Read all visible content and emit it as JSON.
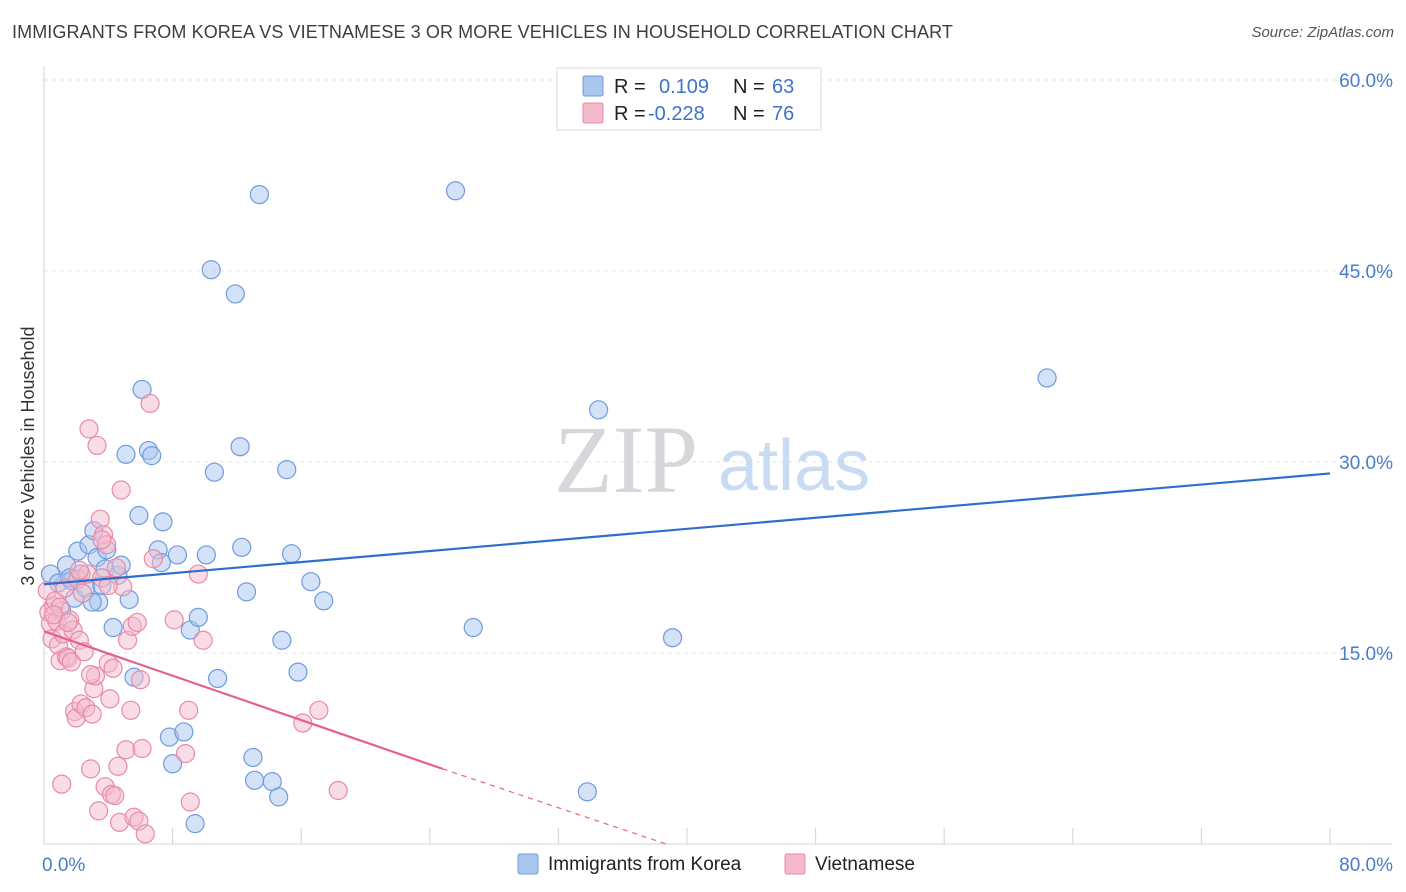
{
  "title": "IMMIGRANTS FROM KOREA VS VIETNAMESE 3 OR MORE VEHICLES IN HOUSEHOLD CORRELATION CHART",
  "source": "Source: ZipAtlas.com",
  "watermark": {
    "zip": "ZIP",
    "atlas": "atlas"
  },
  "colors": {
    "korea_fill": "#a9c6ef",
    "korea_stroke": "#6f9bdc",
    "korea_line": "#2e6fcc",
    "viet_fill": "#f4b9cb",
    "viet_stroke": "#e88aa8",
    "viet_line": "#e5608d",
    "grid": "#e1e4e8",
    "axis_text": "#4a7ccc"
  },
  "legend": {
    "rows": [
      {
        "r_label": "R =",
        "r_value": "0.109",
        "n_label": "N =",
        "n_value": "63"
      },
      {
        "r_label": "R =",
        "r_value": "-0.228",
        "n_label": "N =",
        "n_value": "76"
      }
    ]
  },
  "chart_data": {
    "type": "scatter",
    "xlabel": "",
    "ylabel": "3 or more Vehicles in Household",
    "xlim": [
      0,
      80
    ],
    "ylim": [
      0,
      60
    ],
    "x_tick_labels": {
      "min": "0.0%",
      "max": "80.0%"
    },
    "y_ticks": [
      {
        "value": 15,
        "label": "15.0%"
      },
      {
        "value": 30,
        "label": "30.0%"
      },
      {
        "value": 45,
        "label": "45.0%"
      },
      {
        "value": 60,
        "label": "60.0%"
      }
    ],
    "series": [
      {
        "name": "Immigrants from Korea",
        "R": 0.109,
        "N": 63,
        "trend": {
          "x0": 0,
          "y0": 20.4,
          "x1": 80,
          "y1": 29.1
        },
        "points": [
          [
            0.4,
            21.2
          ],
          [
            0.9,
            20.5
          ],
          [
            1.1,
            18.3
          ],
          [
            1.4,
            21.9
          ],
          [
            1.7,
            20.7
          ],
          [
            1.9,
            19.3
          ],
          [
            2.1,
            23.0
          ],
          [
            2.3,
            21.2
          ],
          [
            2.6,
            20.1
          ],
          [
            2.8,
            23.5
          ],
          [
            3.1,
            24.6
          ],
          [
            3.3,
            22.5
          ],
          [
            3.4,
            19.0
          ],
          [
            3.6,
            20.3
          ],
          [
            3.8,
            21.6
          ],
          [
            3.9,
            23.1
          ],
          [
            4.3,
            17.0
          ],
          [
            4.6,
            21.1
          ],
          [
            4.8,
            21.9
          ],
          [
            5.1,
            30.6
          ],
          [
            5.3,
            19.2
          ],
          [
            5.6,
            13.1
          ],
          [
            5.9,
            25.8
          ],
          [
            6.1,
            35.7
          ],
          [
            6.5,
            30.9
          ],
          [
            6.7,
            30.5
          ],
          [
            7.1,
            23.1
          ],
          [
            7.3,
            22.1
          ],
          [
            7.4,
            25.3
          ],
          [
            7.8,
            8.4
          ],
          [
            8.0,
            6.3
          ],
          [
            8.3,
            22.7
          ],
          [
            8.7,
            8.8
          ],
          [
            9.1,
            16.8
          ],
          [
            9.4,
            1.6
          ],
          [
            9.6,
            17.8
          ],
          [
            10.1,
            22.7
          ],
          [
            10.4,
            45.1
          ],
          [
            10.6,
            29.2
          ],
          [
            10.8,
            13.0
          ],
          [
            11.9,
            43.2
          ],
          [
            12.2,
            31.2
          ],
          [
            12.3,
            23.3
          ],
          [
            12.6,
            19.8
          ],
          [
            13.0,
            6.8
          ],
          [
            13.1,
            5.0
          ],
          [
            13.4,
            51.0
          ],
          [
            14.2,
            4.9
          ],
          [
            14.6,
            3.7
          ],
          [
            14.8,
            16.0
          ],
          [
            15.1,
            29.4
          ],
          [
            15.4,
            22.8
          ],
          [
            15.8,
            13.5
          ],
          [
            16.6,
            20.6
          ],
          [
            17.4,
            19.1
          ],
          [
            25.6,
            51.3
          ],
          [
            26.7,
            17.0
          ],
          [
            33.8,
            4.1
          ],
          [
            34.5,
            34.1
          ],
          [
            39.1,
            16.2
          ],
          [
            62.4,
            36.6
          ],
          [
            3.0,
            19.0
          ],
          [
            1.6,
            20.9
          ]
        ]
      },
      {
        "name": "Vietnamese",
        "R": -0.228,
        "N": 76,
        "trend": {
          "x0": 0,
          "y0": 16.7,
          "x1": 24.8,
          "y1": 5.9
        },
        "trend_dashed": {
          "x0": 24.8,
          "y0": 5.9,
          "x1": 38.7,
          "y1": 0.0
        },
        "points": [
          [
            0.2,
            19.9
          ],
          [
            0.3,
            18.2
          ],
          [
            0.4,
            17.3
          ],
          [
            0.5,
            16.1
          ],
          [
            0.6,
            18.7
          ],
          [
            0.7,
            19.1
          ],
          [
            0.8,
            17.5
          ],
          [
            0.9,
            15.6
          ],
          [
            1.0,
            14.4
          ],
          [
            1.1,
            4.7
          ],
          [
            1.2,
            16.5
          ],
          [
            1.3,
            20.1
          ],
          [
            1.4,
            14.7
          ],
          [
            1.5,
            14.6
          ],
          [
            1.6,
            17.6
          ],
          [
            1.7,
            14.3
          ],
          [
            1.8,
            16.8
          ],
          [
            1.9,
            10.4
          ],
          [
            2.0,
            9.9
          ],
          [
            2.1,
            20.8
          ],
          [
            2.2,
            16.0
          ],
          [
            2.3,
            11.0
          ],
          [
            2.4,
            19.7
          ],
          [
            2.5,
            15.1
          ],
          [
            2.6,
            10.7
          ],
          [
            2.7,
            21.2
          ],
          [
            2.8,
            32.6
          ],
          [
            2.9,
            5.9
          ],
          [
            3.0,
            10.2
          ],
          [
            3.1,
            12.2
          ],
          [
            3.2,
            13.2
          ],
          [
            3.3,
            31.3
          ],
          [
            3.4,
            2.6
          ],
          [
            3.5,
            25.5
          ],
          [
            3.6,
            20.9
          ],
          [
            3.7,
            24.3
          ],
          [
            3.8,
            4.5
          ],
          [
            3.9,
            23.5
          ],
          [
            4.0,
            14.2
          ],
          [
            4.1,
            11.4
          ],
          [
            4.2,
            3.9
          ],
          [
            4.3,
            13.8
          ],
          [
            4.4,
            3.8
          ],
          [
            4.5,
            21.7
          ],
          [
            4.6,
            6.1
          ],
          [
            4.7,
            1.7
          ],
          [
            4.8,
            27.8
          ],
          [
            4.9,
            20.2
          ],
          [
            5.1,
            7.4
          ],
          [
            5.2,
            16.0
          ],
          [
            5.4,
            10.5
          ],
          [
            5.5,
            17.1
          ],
          [
            5.6,
            2.1
          ],
          [
            5.8,
            17.4
          ],
          [
            5.9,
            1.8
          ],
          [
            6.0,
            12.9
          ],
          [
            6.1,
            7.5
          ],
          [
            6.3,
            0.8
          ],
          [
            6.6,
            34.6
          ],
          [
            6.8,
            22.4
          ],
          [
            8.1,
            17.6
          ],
          [
            8.8,
            7.1
          ],
          [
            9.0,
            10.5
          ],
          [
            9.1,
            3.3
          ],
          [
            9.6,
            21.2
          ],
          [
            9.9,
            16.0
          ],
          [
            16.1,
            9.5
          ],
          [
            17.1,
            10.5
          ],
          [
            18.3,
            4.2
          ],
          [
            1.0,
            18.6
          ],
          [
            2.2,
            21.5
          ],
          [
            3.6,
            23.9
          ],
          [
            1.5,
            17.4
          ],
          [
            0.6,
            18.0
          ],
          [
            2.9,
            13.3
          ],
          [
            4.0,
            20.3
          ]
        ]
      }
    ]
  },
  "bottom_legend": {
    "items": [
      "Immigrants from Korea",
      "Vietnamese"
    ]
  }
}
